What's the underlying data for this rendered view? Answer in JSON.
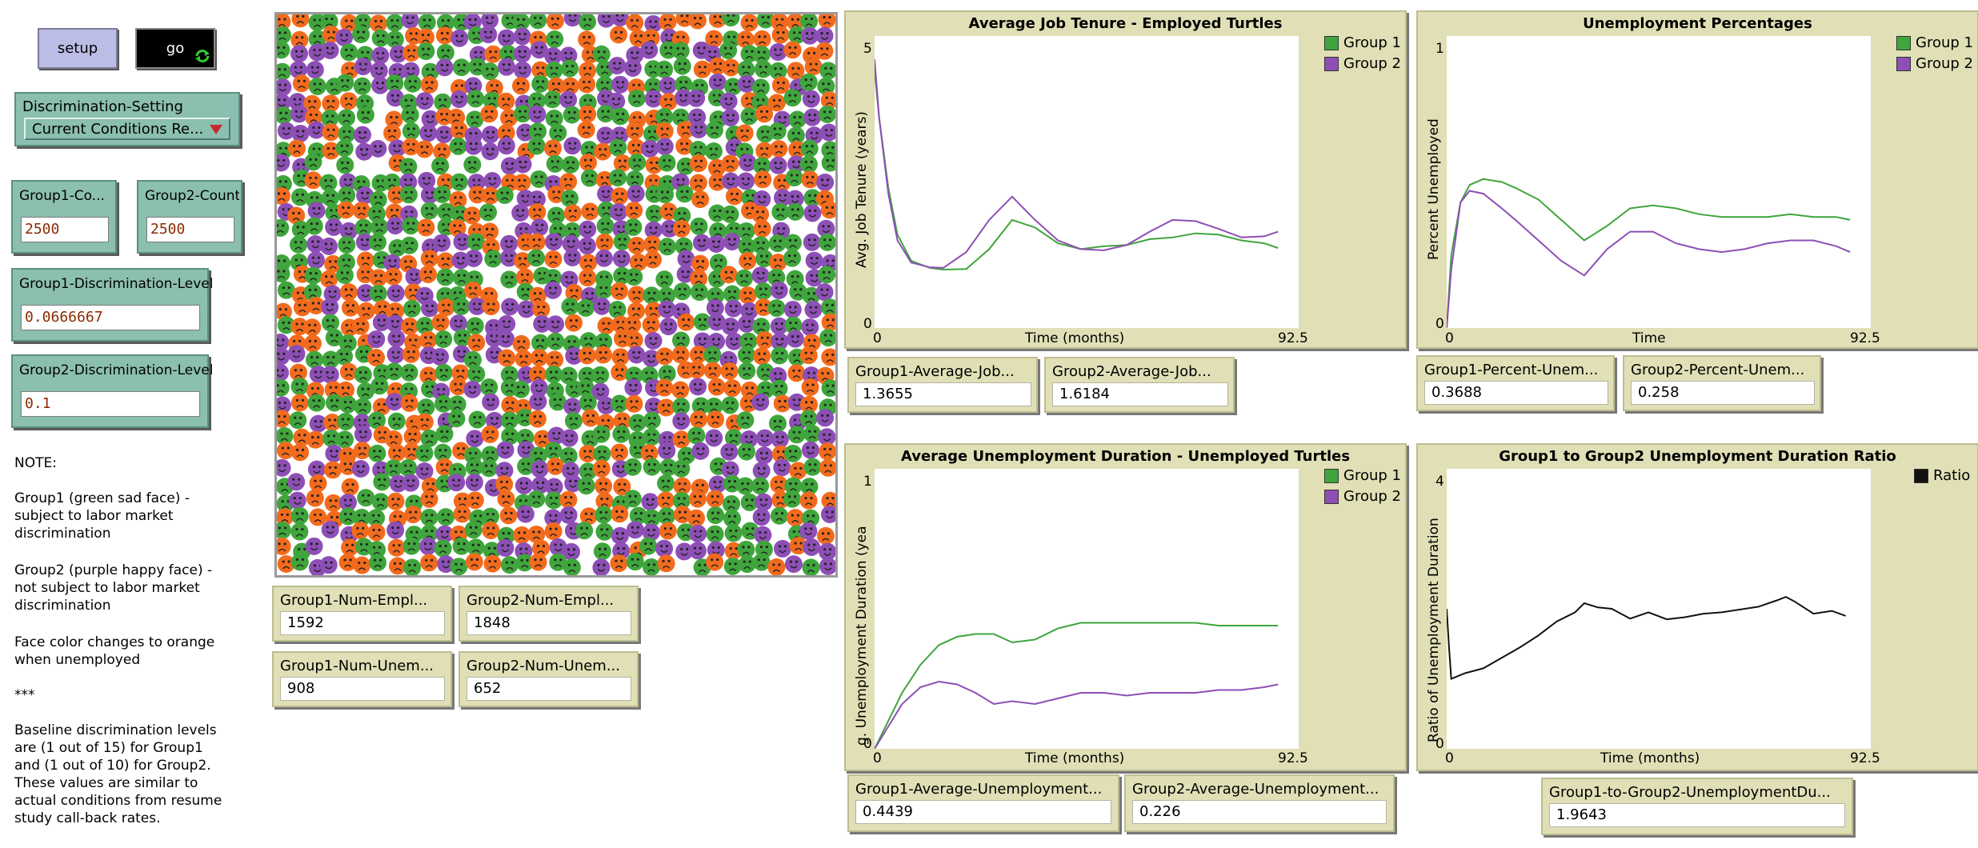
{
  "buttons": {
    "setup": "setup",
    "go": "go"
  },
  "chooser": {
    "label": "Discrimination-Setting",
    "value": "Current Conditions Re..."
  },
  "inputs": {
    "group1_count": {
      "label": "Group1-Co...",
      "value": "2500"
    },
    "group2_count": {
      "label": "Group2-Count",
      "value": "2500"
    },
    "group1_disc": {
      "label": "Group1-Discrimination-Level",
      "value": "0.0666667"
    },
    "group2_disc": {
      "label": "Group2-Discrimination-Level",
      "value": "0.1"
    }
  },
  "notes": {
    "n1": "NOTE:",
    "n2": "Group1 (green sad face) -\nsubject to labor market\ndiscrimination",
    "n3": "Group2 (purple happy face) -\nnot subject to labor market\ndiscrimination",
    "n4": "Face color changes to orange\nwhen unemployed",
    "n5": "***",
    "n6": "Baseline discrimination levels\nare (1 out of 15) for Group1\nand (1 out of 10) for Group2.\nThese values are similar to\nactual conditions from resume\nstudy call-back rates."
  },
  "world": {
    "face_colors": [
      "#3fa53c",
      "#8d4fb5",
      "#f26b1d"
    ],
    "face_icon": "smiley-face-icon"
  },
  "monitors": {
    "g1_employed": {
      "label": "Group1-Num-Empl...",
      "value": "1592"
    },
    "g2_employed": {
      "label": "Group2-Num-Empl...",
      "value": "1848"
    },
    "g1_unemployed": {
      "label": "Group1-Num-Unem...",
      "value": "908"
    },
    "g2_unemployed": {
      "label": "Group2-Num-Unem...",
      "value": "652"
    },
    "g1_avg_job": {
      "label": "Group1-Average-Job...",
      "value": "1.3655"
    },
    "g2_avg_job": {
      "label": "Group2-Average-Job...",
      "value": "1.6184"
    },
    "g1_pct_unemp": {
      "label": "Group1-Percent-Unem...",
      "value": "0.3688"
    },
    "g2_pct_unemp": {
      "label": "Group2-Percent-Unem...",
      "value": "0.258"
    },
    "g1_avg_unemp": {
      "label": "Group1-Average-Unemployment...",
      "value": "0.4439"
    },
    "g2_avg_unemp": {
      "label": "Group2-Average-Unemployment...",
      "value": "0.226"
    },
    "ratio": {
      "label": "Group1-to-Group2-UnemploymentDu...",
      "value": "1.9643"
    }
  },
  "colors": {
    "group1": "#3fa53c",
    "group2": "#8d4fb5",
    "ratio": "#111111"
  },
  "chart_data": [
    {
      "id": "tenure",
      "type": "line",
      "title": "Average Job Tenure - Employed Turtles",
      "xlabel": "Time (months)",
      "ylabel": "Avg. Job Tenure (years)",
      "xlim": [
        0,
        92.5
      ],
      "ylim": [
        0,
        5
      ],
      "x_ticks": [
        "0",
        "92.5"
      ],
      "y_ticks": [
        "0",
        "5"
      ],
      "legend": "top-right",
      "series": [
        {
          "name": "Group 1",
          "color": "#3fa53c",
          "x": [
            0,
            1,
            3,
            5,
            8,
            12,
            15,
            20,
            25,
            30,
            35,
            40,
            45,
            50,
            55,
            60,
            65,
            70,
            75,
            80,
            85,
            88
          ],
          "y": [
            4.4,
            3.6,
            2.4,
            1.6,
            1.15,
            1.03,
            1.0,
            1.01,
            1.35,
            1.85,
            1.72,
            1.45,
            1.35,
            1.4,
            1.42,
            1.52,
            1.55,
            1.62,
            1.6,
            1.5,
            1.45,
            1.37
          ]
        },
        {
          "name": "Group 2",
          "color": "#8d4fb5",
          "x": [
            0,
            1,
            3,
            5,
            8,
            12,
            15,
            20,
            25,
            30,
            35,
            40,
            45,
            50,
            55,
            60,
            65,
            70,
            75,
            80,
            85,
            88
          ],
          "y": [
            4.6,
            3.6,
            2.3,
            1.5,
            1.12,
            1.04,
            1.03,
            1.3,
            1.85,
            2.25,
            1.85,
            1.5,
            1.35,
            1.33,
            1.42,
            1.65,
            1.85,
            1.83,
            1.7,
            1.55,
            1.57,
            1.65
          ]
        }
      ]
    },
    {
      "id": "unemp_pct",
      "type": "line",
      "title": "Unemployment Percentages",
      "xlabel": "Time",
      "ylabel": "Percent Unemployed",
      "xlim": [
        0,
        92.5
      ],
      "ylim": [
        0,
        1
      ],
      "x_ticks": [
        "0",
        "92.5"
      ],
      "y_ticks": [
        "0",
        "1"
      ],
      "legend": "top-right",
      "series": [
        {
          "name": "Group 1",
          "color": "#3fa53c",
          "x": [
            0,
            1,
            3,
            5,
            8,
            12,
            15,
            20,
            25,
            30,
            35,
            40,
            45,
            50,
            55,
            60,
            65,
            70,
            75,
            80,
            85,
            88
          ],
          "y": [
            0,
            0.25,
            0.43,
            0.49,
            0.51,
            0.5,
            0.48,
            0.44,
            0.37,
            0.3,
            0.35,
            0.41,
            0.42,
            0.41,
            0.39,
            0.38,
            0.38,
            0.38,
            0.39,
            0.38,
            0.38,
            0.37
          ]
        },
        {
          "name": "Group 2",
          "color": "#8d4fb5",
          "x": [
            0,
            1,
            3,
            5,
            8,
            12,
            15,
            20,
            25,
            30,
            35,
            40,
            45,
            50,
            55,
            60,
            65,
            70,
            75,
            80,
            85,
            88
          ],
          "y": [
            0,
            0.2,
            0.43,
            0.47,
            0.46,
            0.41,
            0.37,
            0.3,
            0.23,
            0.18,
            0.27,
            0.33,
            0.33,
            0.29,
            0.27,
            0.26,
            0.27,
            0.29,
            0.3,
            0.3,
            0.28,
            0.26
          ]
        }
      ]
    },
    {
      "id": "unemp_dur",
      "type": "line",
      "title": "Average Unemployment Duration - Unemployed Turtles",
      "xlabel": "Time (months)",
      "ylabel": "g. Unemployment Duration (yea",
      "xlim": [
        0,
        92.5
      ],
      "ylim": [
        0,
        1
      ],
      "x_ticks": [
        "0",
        "92.5"
      ],
      "y_ticks": [
        "0",
        "1"
      ],
      "legend": "top-right",
      "series": [
        {
          "name": "Group 1",
          "color": "#3fa53c",
          "x": [
            0,
            3,
            6,
            10,
            14,
            18,
            22,
            26,
            30,
            35,
            40,
            45,
            50,
            55,
            60,
            65,
            70,
            75,
            80,
            85,
            88
          ],
          "y": [
            0,
            0.1,
            0.2,
            0.3,
            0.37,
            0.4,
            0.41,
            0.41,
            0.38,
            0.39,
            0.43,
            0.45,
            0.45,
            0.45,
            0.45,
            0.45,
            0.45,
            0.44,
            0.44,
            0.44,
            0.44
          ]
        },
        {
          "name": "Group 2",
          "color": "#8d4fb5",
          "x": [
            0,
            3,
            6,
            10,
            14,
            18,
            22,
            26,
            30,
            35,
            40,
            45,
            50,
            55,
            60,
            65,
            70,
            75,
            80,
            85,
            88
          ],
          "y": [
            0,
            0.08,
            0.16,
            0.22,
            0.24,
            0.23,
            0.2,
            0.16,
            0.17,
            0.16,
            0.18,
            0.2,
            0.2,
            0.19,
            0.2,
            0.2,
            0.2,
            0.21,
            0.21,
            0.22,
            0.23
          ]
        }
      ]
    },
    {
      "id": "ratio",
      "type": "line",
      "title": "Group1 to Group2 Unemployment Duration Ratio",
      "xlabel": "Time (months)",
      "ylabel": "Ratio of Unemployment Duration",
      "xlim": [
        0,
        92.5
      ],
      "ylim": [
        0,
        4
      ],
      "x_ticks": [
        "0",
        "92.5"
      ],
      "y_ticks": [
        "0",
        "4"
      ],
      "legend": "top-right",
      "series": [
        {
          "name": "Ratio",
          "color": "#111111",
          "x": [
            0,
            0.5,
            1,
            4,
            8,
            12,
            16,
            20,
            24,
            28,
            30,
            33,
            36,
            40,
            44,
            48,
            52,
            56,
            60,
            64,
            68,
            72,
            74,
            76,
            80,
            84,
            87
          ],
          "y": [
            2.0,
            1.45,
            1.0,
            1.08,
            1.15,
            1.3,
            1.45,
            1.62,
            1.82,
            1.95,
            2.08,
            2.02,
            2.0,
            1.86,
            1.95,
            1.85,
            1.88,
            1.93,
            1.95,
            1.99,
            2.03,
            2.12,
            2.17,
            2.1,
            1.93,
            1.97,
            1.9
          ]
        }
      ]
    }
  ]
}
